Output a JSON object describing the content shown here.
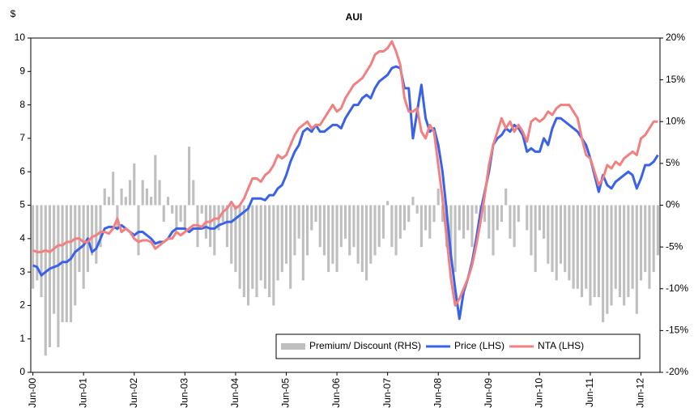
{
  "chart_data": {
    "type": "combo",
    "title": "AUI",
    "y_unit_label": "$",
    "categories": [
      "Jun-00",
      null,
      null,
      null,
      null,
      null,
      null,
      null,
      null,
      null,
      null,
      null,
      "Jun-01",
      null,
      null,
      null,
      null,
      null,
      null,
      null,
      null,
      null,
      null,
      null,
      "Jun-02",
      null,
      null,
      null,
      null,
      null,
      null,
      null,
      null,
      null,
      null,
      null,
      "Jun-03",
      null,
      null,
      null,
      null,
      null,
      null,
      null,
      null,
      null,
      null,
      null,
      "Jun-04",
      null,
      null,
      null,
      null,
      null,
      null,
      null,
      null,
      null,
      null,
      null,
      "Jun-05",
      null,
      null,
      null,
      null,
      null,
      null,
      null,
      null,
      null,
      null,
      null,
      "Jun-06",
      null,
      null,
      null,
      null,
      null,
      null,
      null,
      null,
      null,
      null,
      null,
      "Jun-07",
      null,
      null,
      null,
      null,
      null,
      null,
      null,
      null,
      null,
      null,
      null,
      "Jun-08",
      null,
      null,
      null,
      null,
      null,
      null,
      null,
      null,
      null,
      null,
      null,
      "Jun-09",
      null,
      null,
      null,
      null,
      null,
      null,
      null,
      null,
      null,
      null,
      null,
      "Jun-10",
      null,
      null,
      null,
      null,
      null,
      null,
      null,
      null,
      null,
      null,
      null,
      "Jun-11",
      null,
      null,
      null,
      null,
      null,
      null,
      null,
      null,
      null,
      null,
      null,
      "Jun-12",
      null,
      null,
      null,
      null
    ],
    "series": [
      {
        "name": "Premium/ Discount (RHS)",
        "type": "bar",
        "axis": "y2",
        "color": "#bfbfbf",
        "values": [
          -10,
          -9,
          -11,
          -18,
          -17,
          -13,
          -17,
          -14,
          -14,
          -14,
          -12,
          -8,
          -10,
          -8,
          -6,
          -7,
          -5,
          2,
          1,
          4,
          -3,
          2,
          1,
          3,
          5,
          -6,
          3,
          2,
          1,
          6,
          3,
          -2,
          1,
          -1,
          -3,
          -2,
          -3,
          7,
          3,
          -5,
          -1,
          -4,
          -5,
          -6,
          -3,
          -2,
          -5,
          -7,
          -8,
          -10,
          -11,
          -12,
          -10,
          -11,
          -9,
          -10,
          -11,
          -12,
          -9,
          -8,
          -7,
          -10,
          -6,
          -4,
          -9,
          -6,
          -3,
          -2,
          -5,
          -6,
          -8,
          -7,
          -8,
          -5,
          -4,
          -6,
          -5,
          -7,
          -8,
          -9,
          -7,
          -6,
          -5,
          -4,
          0.5,
          -5,
          -6,
          -4,
          -3,
          -2,
          1,
          -1,
          -5,
          -3,
          -4,
          -2,
          2,
          -2,
          -5,
          -6,
          -8,
          -3,
          -4,
          -3,
          -5,
          -1,
          -1,
          -2,
          -4,
          -6,
          -3,
          -2,
          2,
          -4,
          -5,
          -2,
          0,
          -3,
          -6,
          -8,
          -3,
          -4,
          -7,
          -8,
          -9,
          -7,
          -8,
          -9,
          -10,
          -10,
          -11,
          -10,
          -12,
          -11,
          -11,
          -14,
          -13,
          -12,
          -10,
          -11,
          -12,
          -11,
          -10,
          -13,
          -9,
          -8,
          -10,
          -8,
          -6
        ]
      },
      {
        "name": "Price (LHS)",
        "type": "line",
        "axis": "y",
        "color": "#3a62e8",
        "values": [
          3.2,
          3.15,
          2.9,
          3.0,
          3.1,
          3.15,
          3.2,
          3.3,
          3.3,
          3.4,
          3.6,
          3.7,
          3.8,
          4.0,
          3.6,
          3.7,
          4.0,
          4.3,
          4.35,
          4.35,
          4.3,
          4.4,
          4.3,
          4.2,
          4.1,
          4.2,
          4.2,
          4.1,
          4.0,
          3.85,
          3.9,
          3.9,
          4.0,
          4.2,
          4.3,
          4.3,
          4.3,
          4.2,
          4.3,
          4.3,
          4.3,
          4.35,
          4.3,
          4.3,
          4.4,
          4.45,
          4.5,
          4.5,
          4.6,
          4.7,
          4.8,
          4.9,
          5.2,
          5.2,
          5.2,
          5.15,
          5.3,
          5.3,
          5.5,
          5.6,
          5.9,
          6.3,
          6.6,
          6.8,
          7.2,
          7.3,
          7.2,
          7.4,
          7.2,
          7.2,
          7.3,
          7.4,
          7.4,
          7.3,
          7.6,
          7.8,
          8.0,
          8.0,
          8.2,
          8.3,
          8.2,
          8.5,
          8.7,
          8.8,
          8.9,
          9.1,
          9.15,
          9.1,
          8.5,
          8.5,
          7.0,
          7.8,
          8.6,
          7.6,
          7.2,
          7.3,
          6.8,
          6.0,
          4.8,
          3.5,
          2.5,
          1.6,
          2.4,
          2.8,
          3.3,
          4.0,
          4.8,
          5.4,
          6.0,
          6.8,
          7.0,
          7.1,
          7.3,
          7.2,
          7.4,
          7.3,
          7.1,
          6.6,
          6.7,
          6.6,
          6.6,
          7.0,
          6.8,
          7.3,
          7.6,
          7.6,
          7.5,
          7.4,
          7.3,
          7.2,
          7.0,
          6.8,
          6.4,
          5.9,
          5.4,
          5.9,
          5.6,
          5.5,
          5.7,
          5.8,
          5.9,
          6.0,
          5.9,
          5.5,
          5.8,
          6.2,
          6.2,
          6.3,
          6.5
        ]
      },
      {
        "name": "NTA (LHS)",
        "type": "line",
        "axis": "y",
        "color": "#f28080",
        "values": [
          3.65,
          3.6,
          3.6,
          3.65,
          3.6,
          3.7,
          3.8,
          3.8,
          3.9,
          3.9,
          4.0,
          4.0,
          3.9,
          3.9,
          4.05,
          4.1,
          4.2,
          4.2,
          4.15,
          4.3,
          4.6,
          4.2,
          4.3,
          4.2,
          4.0,
          3.9,
          3.95,
          3.95,
          3.9,
          3.7,
          3.8,
          3.9,
          4.0,
          4.0,
          4.2,
          4.1,
          4.2,
          4.3,
          4.4,
          4.4,
          4.35,
          4.5,
          4.5,
          4.6,
          4.6,
          4.8,
          4.9,
          5.1,
          4.9,
          5.0,
          5.2,
          5.5,
          5.8,
          5.8,
          5.7,
          5.9,
          6.0,
          6.2,
          6.5,
          6.4,
          6.5,
          6.8,
          7.1,
          7.3,
          7.4,
          7.5,
          7.3,
          7.4,
          7.4,
          7.6,
          7.8,
          8.0,
          7.8,
          7.9,
          8.2,
          8.4,
          8.6,
          8.7,
          8.8,
          9.0,
          9.2,
          9.5,
          9.6,
          9.6,
          9.7,
          9.9,
          9.6,
          9.2,
          8.2,
          7.8,
          7.8,
          7.9,
          7.2,
          7.0,
          7.4,
          7.2,
          6.2,
          5.2,
          4.0,
          2.8,
          2.0,
          2.2,
          2.5,
          2.8,
          3.2,
          3.8,
          4.5,
          5.3,
          6.2,
          6.8,
          7.2,
          7.6,
          7.3,
          7.5,
          7.2,
          7.4,
          7.2,
          6.9,
          7.5,
          7.6,
          7.5,
          7.6,
          7.8,
          7.7,
          7.9,
          8.0,
          8.0,
          8.0,
          7.8,
          7.6,
          7.0,
          6.5,
          6.4,
          6.0,
          5.6,
          5.8,
          6.2,
          6.1,
          6.3,
          6.2,
          6.4,
          6.5,
          6.6,
          6.5,
          7.0,
          7.1,
          7.3,
          7.5,
          7.5
        ]
      }
    ],
    "ylim": [
      0,
      10
    ],
    "yticks": [
      0,
      1,
      2,
      3,
      4,
      5,
      6,
      7,
      8,
      9,
      10
    ],
    "y2lim": [
      -20,
      20
    ],
    "y2ticks": [
      {
        "value": -20,
        "label": "-20%"
      },
      {
        "value": -15,
        "label": "-15%"
      },
      {
        "value": -10,
        "label": "-10%"
      },
      {
        "value": -5,
        "label": "-5%"
      },
      {
        "value": 0,
        "label": "0%"
      },
      {
        "value": 5,
        "label": "5%"
      },
      {
        "value": 10,
        "label": "10%"
      },
      {
        "value": 15,
        "label": "15%"
      },
      {
        "value": 20,
        "label": "20%"
      }
    ],
    "grid": false,
    "legend": "bottom-right"
  }
}
